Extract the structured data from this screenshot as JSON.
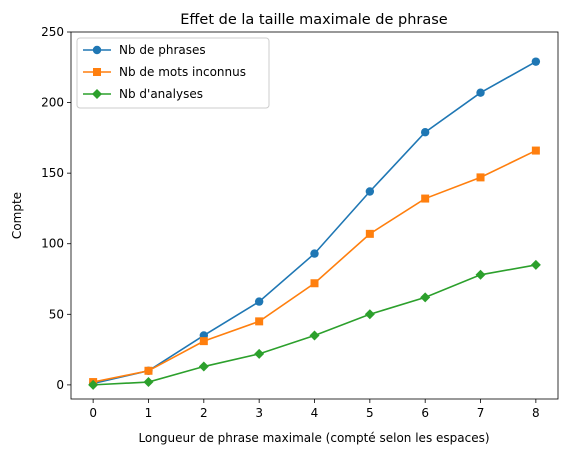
{
  "chart_data": {
    "type": "line",
    "title": "Effet de la taille maximale de phrase",
    "xlabel": "Longueur de phrase maximale (compté selon les espaces)",
    "ylabel": "Compte",
    "x": [
      0,
      1,
      2,
      3,
      4,
      5,
      6,
      7,
      8
    ],
    "xlim": [
      -0.4,
      8.4
    ],
    "ylim": [
      -10,
      250
    ],
    "xticks": [
      0,
      1,
      2,
      3,
      4,
      5,
      6,
      7,
      8
    ],
    "yticks": [
      0,
      50,
      100,
      150,
      200,
      250
    ],
    "grid": false,
    "legend_position": "top-left",
    "series": [
      {
        "name": "Nb de phrases",
        "color": "#1f77b4",
        "marker": "circle",
        "values": [
          1,
          10,
          35,
          59,
          93,
          137,
          179,
          207,
          229
        ]
      },
      {
        "name": "Nb de mots inconnus",
        "color": "#ff7f0e",
        "marker": "square",
        "values": [
          2,
          10,
          31,
          45,
          72,
          107,
          132,
          147,
          166
        ]
      },
      {
        "name": "Nb d'analyses",
        "color": "#2ca02c",
        "marker": "diamond",
        "values": [
          0,
          2,
          13,
          22,
          35,
          50,
          62,
          78,
          85
        ]
      }
    ]
  }
}
